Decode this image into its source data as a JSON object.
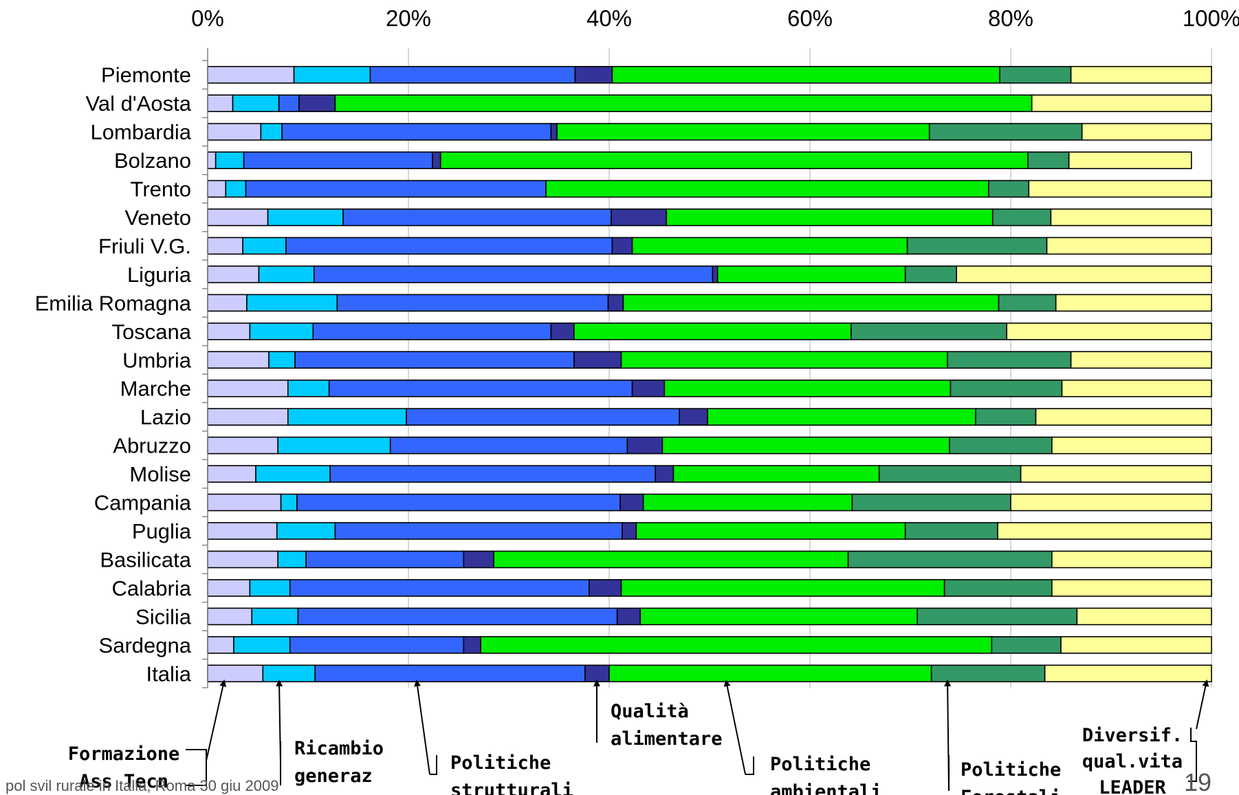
{
  "chart_data": {
    "type": "bar",
    "orientation": "horizontal",
    "stacked": "percent",
    "xlim": [
      0,
      100
    ],
    "x_ticks": [
      "0%",
      "20%",
      "40%",
      "60%",
      "80%",
      "100%"
    ],
    "grid": "vertical",
    "categories": [
      "Piemonte",
      "Val d'Aosta",
      "Lombardia",
      "Bolzano",
      "Trento",
      "Veneto",
      "Friuli V.G.",
      "Liguria",
      "Emilia Romagna",
      "Toscana",
      "Umbria",
      "Marche",
      "Lazio",
      "Abruzzo",
      "Molise",
      "Campania",
      "Puglia",
      "Basilicata",
      "Calabria",
      "Sicilia",
      "Sardegna",
      "Italia"
    ],
    "series": [
      {
        "color": "#ccccff",
        "values": [
          8.6,
          2.5,
          5.3,
          0.8,
          1.8,
          6.0,
          3.5,
          5.1,
          3.9,
          4.2,
          6.1,
          8.0,
          8.0,
          7.0,
          4.8,
          7.3,
          6.9,
          7.0,
          4.2,
          4.4,
          2.6,
          5.5
        ]
      },
      {
        "color": "#00ccff",
        "values": [
          7.6,
          4.6,
          2.1,
          2.8,
          2.0,
          7.5,
          4.3,
          5.5,
          9.0,
          6.3,
          2.6,
          4.1,
          11.8,
          11.2,
          7.4,
          1.6,
          5.8,
          2.8,
          4.0,
          4.6,
          5.6,
          5.2
        ]
      },
      {
        "color": "#3366ff",
        "values": [
          20.4,
          2.0,
          26.8,
          18.8,
          29.9,
          26.7,
          32.5,
          39.7,
          27.0,
          23.7,
          27.8,
          30.2,
          27.2,
          23.6,
          32.4,
          32.2,
          28.6,
          15.7,
          29.8,
          31.8,
          17.3,
          26.9
        ]
      },
      {
        "color": "#333399",
        "values": [
          3.7,
          3.6,
          0.6,
          0.8,
          0.0,
          5.5,
          2.0,
          0.5,
          1.5,
          2.3,
          4.7,
          3.2,
          2.8,
          3.5,
          1.8,
          2.3,
          1.4,
          3.0,
          3.2,
          2.3,
          1.7,
          2.4
        ]
      },
      {
        "color": "#00ee00",
        "values": [
          38.6,
          69.4,
          37.1,
          58.5,
          44.1,
          32.5,
          27.4,
          18.7,
          37.4,
          27.6,
          32.5,
          28.5,
          26.7,
          28.6,
          20.5,
          20.8,
          26.8,
          35.3,
          32.2,
          27.6,
          50.9,
          32.1
        ]
      },
      {
        "color": "#339966",
        "values": [
          7.1,
          0.0,
          15.2,
          4.1,
          4.0,
          5.8,
          13.9,
          5.1,
          5.7,
          15.5,
          12.3,
          11.1,
          6.0,
          10.2,
          14.1,
          15.8,
          9.2,
          20.3,
          10.7,
          15.9,
          6.9,
          11.3
        ]
      },
      {
        "color": "#ffff99",
        "values": [
          14.0,
          17.9,
          12.9,
          12.2,
          18.2,
          16.0,
          16.4,
          25.4,
          15.5,
          20.4,
          14.0,
          14.9,
          17.5,
          15.9,
          19.0,
          20.0,
          21.3,
          15.9,
          15.9,
          13.4,
          15.0,
          16.6
        ]
      }
    ],
    "annotations": [
      {
        "lines": [
          "Formazione",
          "Ass Tecn"
        ]
      },
      {
        "lines": [
          "Ricambio",
          "generaz"
        ]
      },
      {
        "lines": [
          "Politiche",
          "strutturali"
        ]
      },
      {
        "lines": [
          "Qualità",
          "alimentare"
        ]
      },
      {
        "lines": [
          "Politiche",
          "ambientali"
        ]
      },
      {
        "lines": [
          "Politiche",
          "Forestali"
        ]
      },
      {
        "lines": [
          "Diversif.",
          "qual.vita",
          "LEADER"
        ]
      }
    ]
  },
  "footer": {
    "left": "pol svil rurale in Italia, Roma 30 giu 2009",
    "page_number": "19"
  }
}
